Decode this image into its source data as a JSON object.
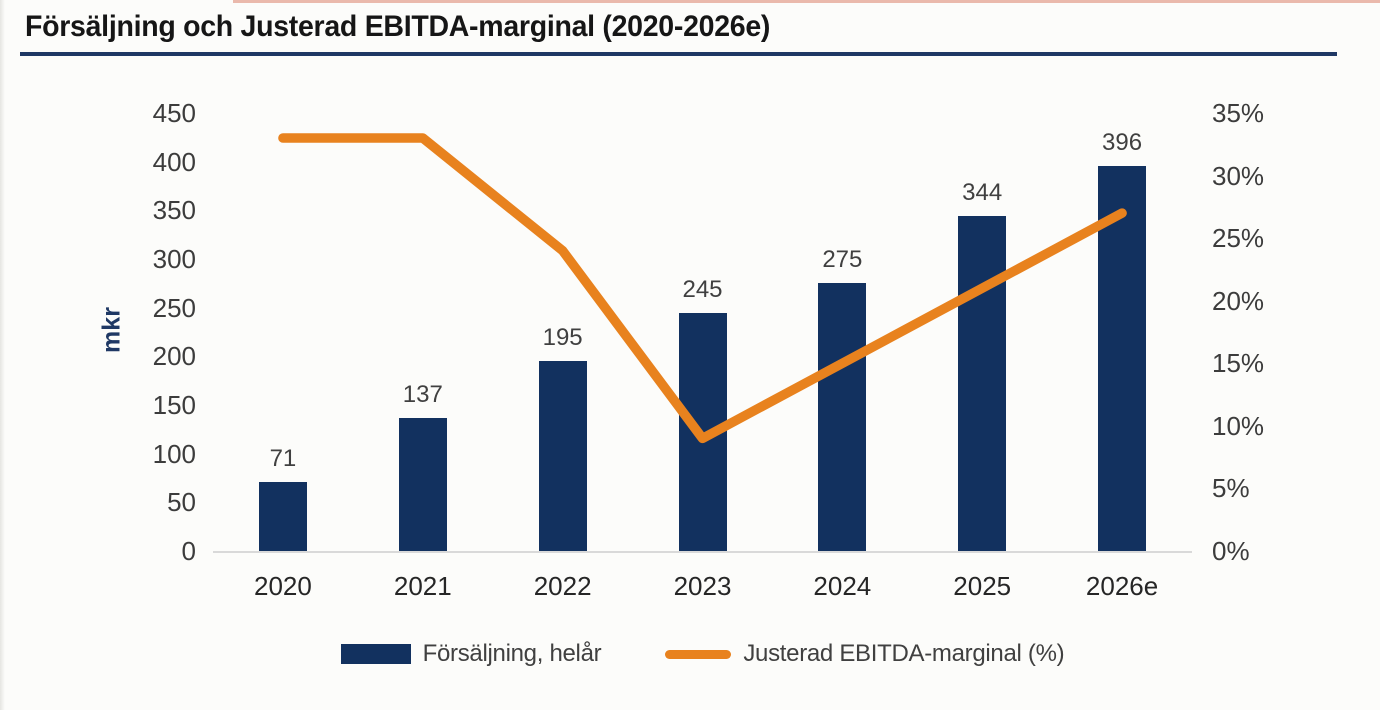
{
  "header": {
    "title": "Försäljning och Justerad EBITDA-marginal (2020-2026e)"
  },
  "colors": {
    "bar": "#12315f",
    "line": "#e8821e",
    "title_underline": "#1f3864",
    "baseline": "#d9d9d9",
    "top_strip": "#cf5638"
  },
  "chart_data": {
    "type": "bar",
    "subtype": "combo bar+line, dual axis",
    "title": "Försäljning och Justerad EBITDA-marginal (2020-2026e)",
    "categories": [
      "2020",
      "2021",
      "2022",
      "2023",
      "2024",
      "2025",
      "2026e"
    ],
    "series": [
      {
        "name": "Försäljning, helår",
        "type": "bar",
        "axis": "left",
        "values": [
          71,
          137,
          195,
          245,
          275,
          344,
          396
        ],
        "labels": [
          "71",
          "137",
          "195",
          "245",
          "275",
          "344",
          "396"
        ]
      },
      {
        "name": "Justerad EBITDA-marginal (%)",
        "type": "line",
        "axis": "right",
        "values": [
          33,
          33,
          24,
          9,
          15,
          21,
          27
        ],
        "unit": "%"
      }
    ],
    "ylabel": "mkr",
    "xlabel": "",
    "left_axis": {
      "min": 0,
      "max": 450,
      "step": 50,
      "ticks": [
        "450",
        "400",
        "350",
        "300",
        "250",
        "200",
        "150",
        "100",
        "50",
        "0"
      ]
    },
    "right_axis": {
      "min": 0,
      "max": 35,
      "step": 5,
      "ticks": [
        "35%",
        "30%",
        "25%",
        "20%",
        "15%",
        "10%",
        "5%",
        "0%"
      ]
    },
    "grid": false,
    "legend_position": "bottom"
  },
  "legend": {
    "items": [
      {
        "label": "Försäljning, helår",
        "swatch": "bar"
      },
      {
        "label": "Justerad EBITDA-marginal (%)",
        "swatch": "line"
      }
    ]
  }
}
